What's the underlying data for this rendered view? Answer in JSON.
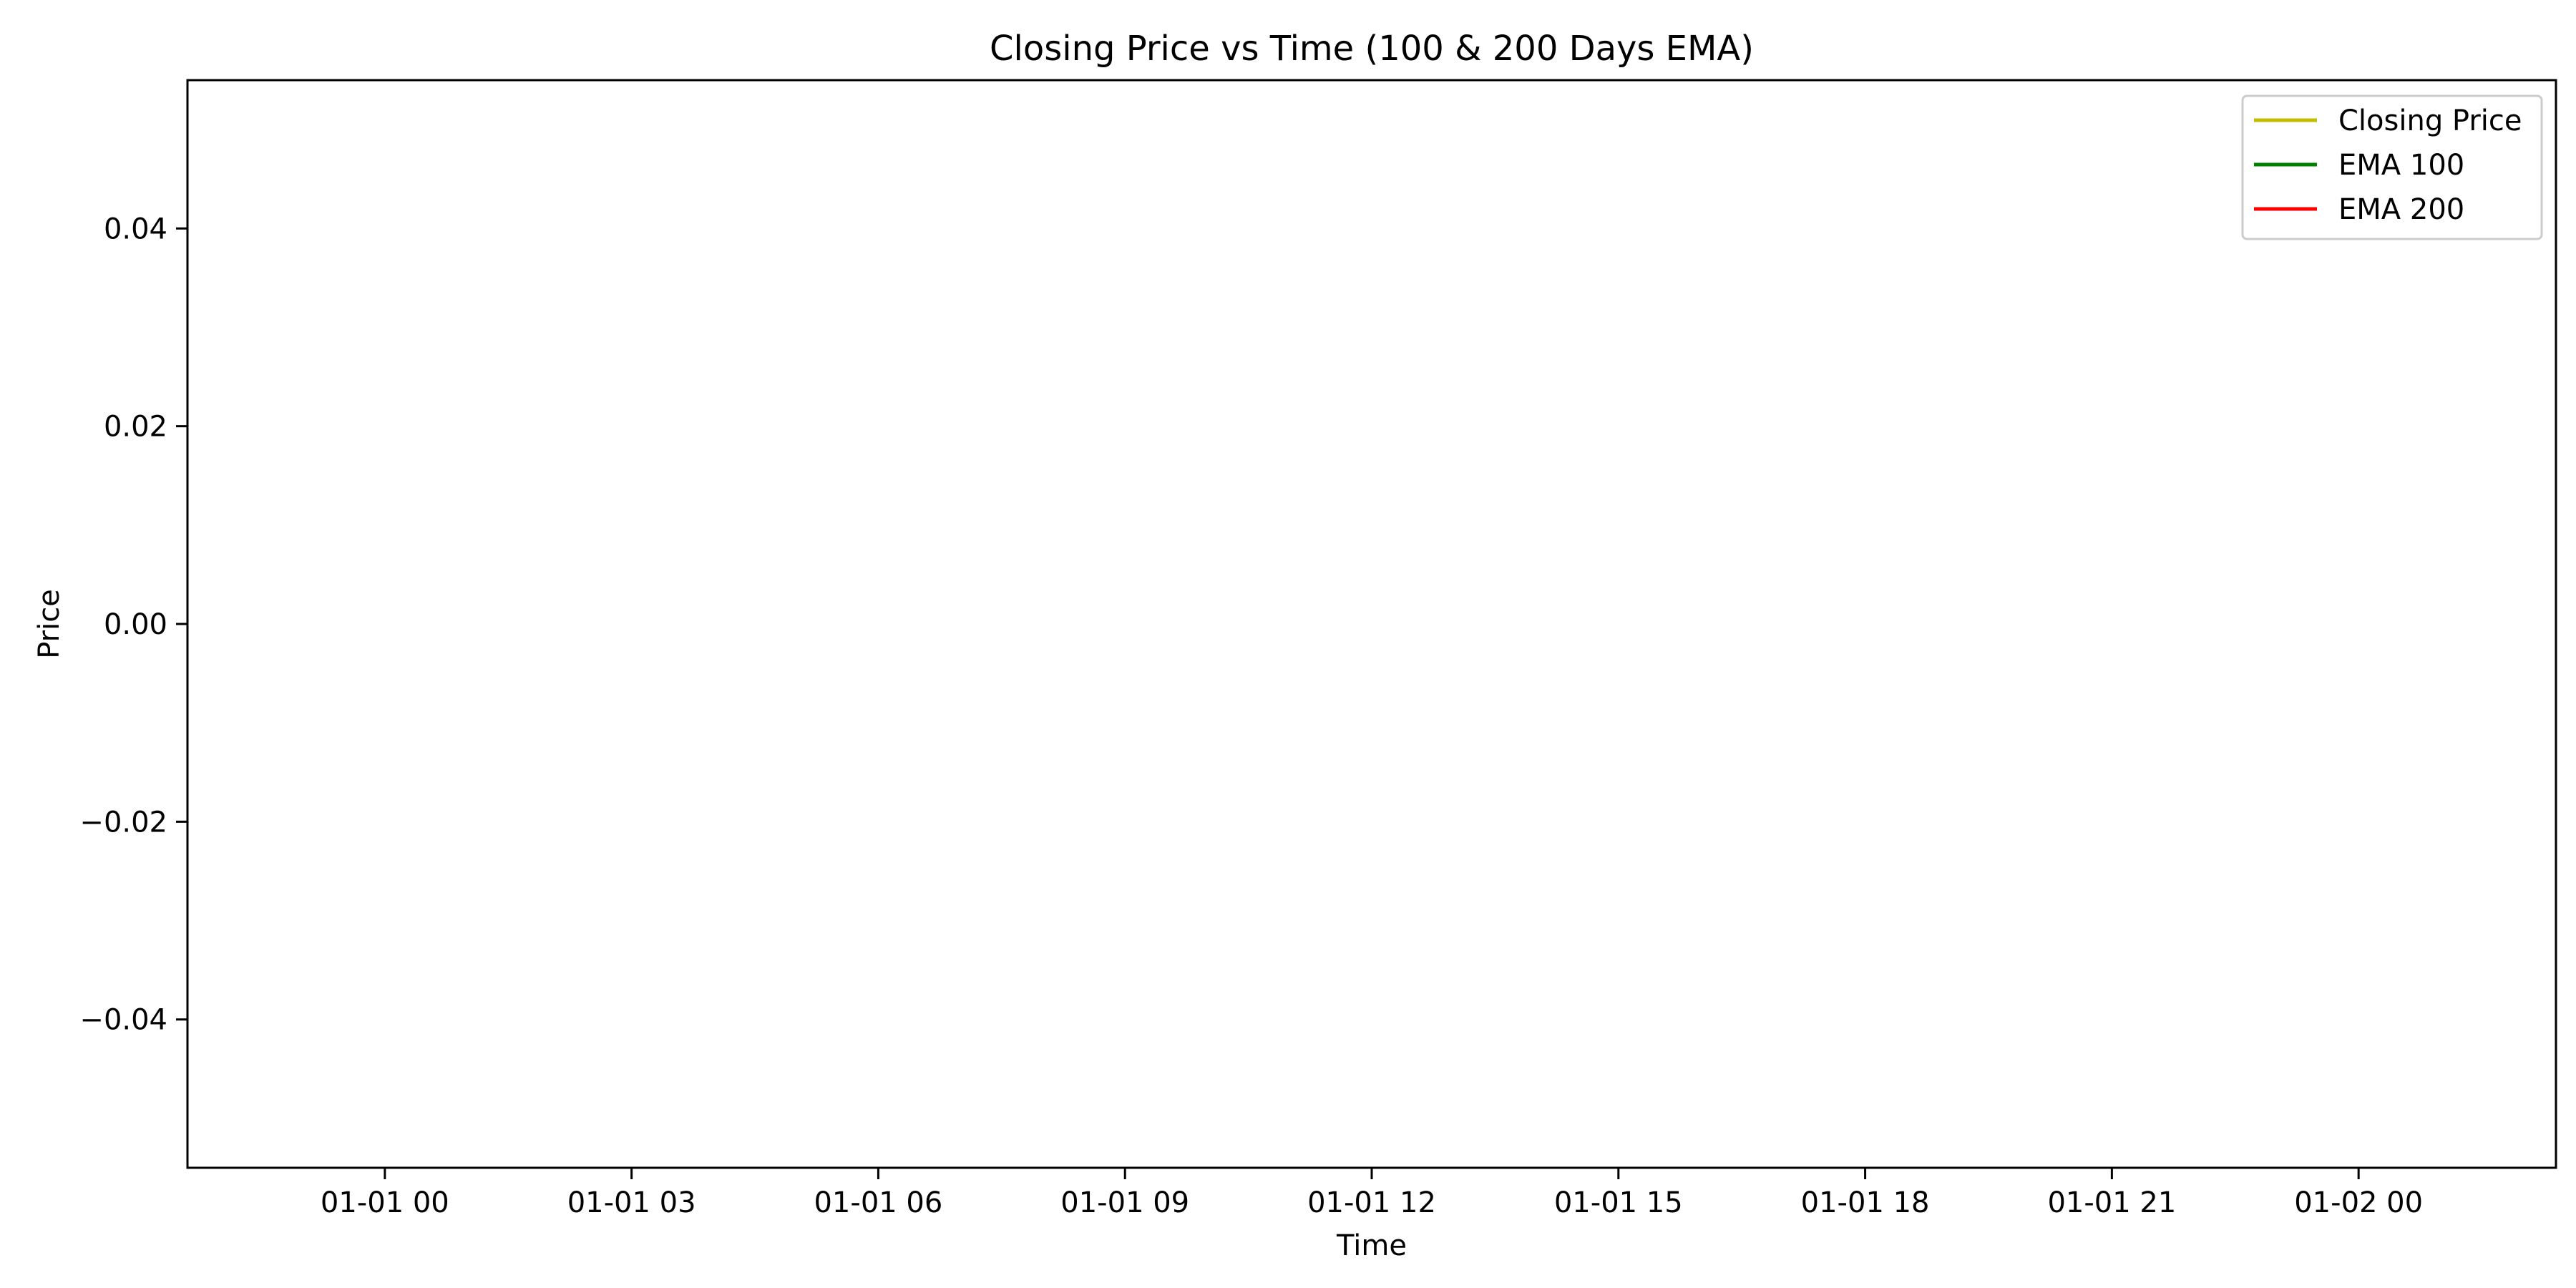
{
  "chart_data": {
    "type": "line",
    "title": "Closing Price vs Time (100 & 200 Days EMA)",
    "xlabel": "Time",
    "ylabel": "Price",
    "xlim": [
      "12-31 21:36",
      "01-02 02:24"
    ],
    "ylim": [
      -0.055,
      0.055
    ],
    "x_ticks": [
      "01-01 00",
      "01-01 03",
      "01-01 06",
      "01-01 09",
      "01-01 12",
      "01-01 15",
      "01-01 18",
      "01-01 21",
      "01-02 00"
    ],
    "y_ticks": [
      -0.04,
      -0.02,
      0.0,
      0.02,
      0.04
    ],
    "y_tick_labels": [
      "−0.04",
      "−0.02",
      "0.00",
      "0.02",
      "0.04"
    ],
    "grid": false,
    "legend_position": "top-right",
    "series": [
      {
        "name": "Closing Price",
        "color": "#bfbf00",
        "values": []
      },
      {
        "name": "EMA 100",
        "color": "#008000",
        "values": []
      },
      {
        "name": "EMA 200",
        "color": "#ff0000",
        "values": []
      }
    ]
  }
}
